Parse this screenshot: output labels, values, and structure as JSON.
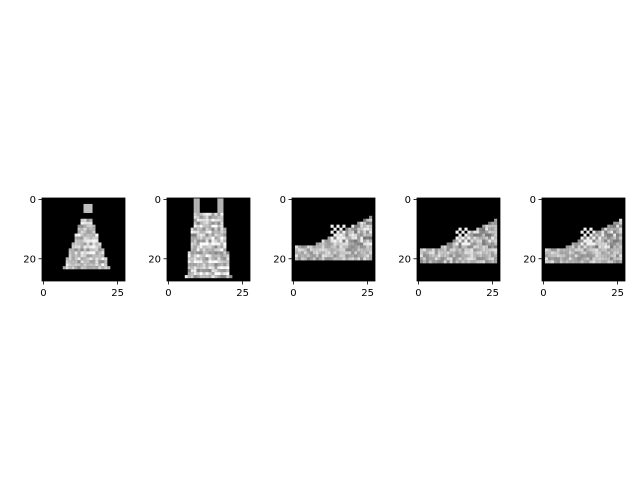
{
  "chart_data": [
    {
      "type": "heatmap",
      "colormap": "gray",
      "content": "generated grayscale image of a dress / top on black background",
      "xticks": [
        0,
        25
      ],
      "yticks": [
        0,
        20
      ],
      "xlim": [
        0,
        27
      ],
      "ylim": [
        27,
        0
      ]
    },
    {
      "type": "heatmap",
      "colormap": "gray",
      "content": "generated grayscale image of a dress with straps on black background",
      "xticks": [
        0,
        25
      ],
      "yticks": [
        0,
        20
      ],
      "xlim": [
        0,
        27
      ],
      "ylim": [
        27,
        0
      ]
    },
    {
      "type": "heatmap",
      "colormap": "gray",
      "content": "generated grayscale image of a sneaker on black background",
      "xticks": [
        0,
        25
      ],
      "yticks": [
        0,
        20
      ],
      "xlim": [
        0,
        27
      ],
      "ylim": [
        27,
        0
      ]
    },
    {
      "type": "heatmap",
      "colormap": "gray",
      "content": "generated grayscale image of a sneaker on black background",
      "xticks": [
        0,
        25
      ],
      "yticks": [
        0,
        20
      ],
      "xlim": [
        0,
        27
      ],
      "ylim": [
        27,
        0
      ]
    },
    {
      "type": "heatmap",
      "colormap": "gray",
      "content": "generated grayscale image of a sneaker on black background",
      "xticks": [
        0,
        25
      ],
      "yticks": [
        0,
        20
      ],
      "xlim": [
        0,
        27
      ],
      "ylim": [
        27,
        0
      ]
    }
  ]
}
